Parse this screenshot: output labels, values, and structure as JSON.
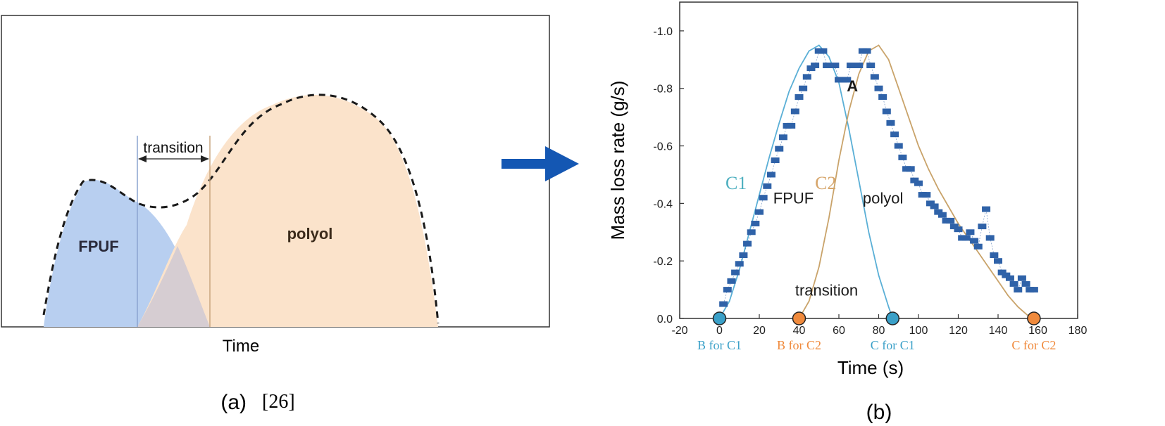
{
  "panel_a": {
    "caption": "(a)",
    "reference": "[26]",
    "xlabel": "Time",
    "labels": {
      "transition": "transition",
      "fpuf": "FPUF",
      "polyol": "polyol"
    },
    "colors": {
      "fpuf_fill": "#b8cff0",
      "polyol_fill": "#fbe3cb",
      "overlap_fill": "#cfc9d3",
      "outline": "#1a1a1a"
    }
  },
  "panel_b": {
    "caption": "(b)",
    "chart_data": {
      "type": "scatter",
      "xlabel": "Time (s)",
      "ylabel": "Mass loss rate (g/s)",
      "xlim": [
        -20,
        180
      ],
      "ylim": [
        0.0,
        -1.1
      ],
      "xticks": [
        -20,
        0,
        20,
        40,
        60,
        80,
        100,
        120,
        140,
        160,
        180
      ],
      "yticks": [
        0.0,
        -0.2,
        -0.4,
        -0.6,
        -0.8,
        -1.0
      ],
      "ytick_labels": [
        "0.0",
        "-0.2",
        "-0.4",
        "-0.6",
        "-0.8",
        "-1.0"
      ],
      "series": [
        {
          "kind": "measured",
          "color": "#2f62a8",
          "x": [
            2,
            4,
            6,
            8,
            10,
            12,
            14,
            16,
            18,
            20,
            22,
            24,
            26,
            28,
            30,
            32,
            34,
            36,
            38,
            40,
            42,
            44,
            46,
            48,
            50,
            52,
            54,
            56,
            58,
            60,
            62,
            64,
            66,
            68,
            70,
            72,
            74,
            76,
            78,
            80,
            82,
            84,
            86,
            88,
            90,
            92,
            94,
            96,
            98,
            100,
            102,
            104,
            106,
            108,
            110,
            112,
            114,
            116,
            118,
            120,
            122,
            124,
            126,
            128,
            130,
            132,
            134,
            136,
            138,
            140,
            142,
            144,
            146,
            148,
            150,
            152,
            154,
            156,
            158
          ],
          "y": [
            -0.05,
            -0.1,
            -0.13,
            -0.16,
            -0.19,
            -0.22,
            -0.26,
            -0.3,
            -0.33,
            -0.37,
            -0.42,
            -0.46,
            -0.5,
            -0.55,
            -0.59,
            -0.63,
            -0.67,
            -0.67,
            -0.72,
            -0.77,
            -0.8,
            -0.84,
            -0.87,
            -0.88,
            -0.93,
            -0.93,
            -0.88,
            -0.88,
            -0.88,
            -0.83,
            -0.83,
            -0.83,
            -0.88,
            -0.88,
            -0.88,
            -0.93,
            -0.93,
            -0.88,
            -0.84,
            -0.8,
            -0.77,
            -0.72,
            -0.68,
            -0.64,
            -0.6,
            -0.56,
            -0.52,
            -0.52,
            -0.48,
            -0.47,
            -0.43,
            -0.43,
            -0.4,
            -0.39,
            -0.37,
            -0.36,
            -0.34,
            -0.34,
            -0.32,
            -0.31,
            -0.28,
            -0.28,
            -0.3,
            -0.27,
            -0.25,
            -0.32,
            -0.38,
            -0.28,
            -0.22,
            -0.2,
            -0.16,
            -0.15,
            -0.14,
            -0.12,
            -0.1,
            -0.14,
            -0.12,
            -0.1,
            -0.1
          ]
        },
        {
          "name": "C1",
          "kind": "fit",
          "color": "#5aafd6",
          "x": [
            0,
            5,
            10,
            15,
            20,
            25,
            30,
            35,
            40,
            45,
            50,
            55,
            60,
            65,
            70,
            75,
            80,
            85,
            87
          ],
          "y": [
            0,
            -0.06,
            -0.17,
            -0.3,
            -0.43,
            -0.56,
            -0.68,
            -0.79,
            -0.87,
            -0.93,
            -0.95,
            -0.91,
            -0.82,
            -0.66,
            -0.48,
            -0.3,
            -0.15,
            -0.04,
            0
          ]
        },
        {
          "name": "C2",
          "kind": "fit",
          "color": "#c9a36a",
          "x": [
            40,
            45,
            50,
            55,
            60,
            65,
            70,
            75,
            80,
            85,
            90,
            95,
            100,
            105,
            110,
            115,
            120,
            125,
            130,
            135,
            140,
            145,
            150,
            155,
            158
          ],
          "y": [
            0,
            -0.06,
            -0.18,
            -0.35,
            -0.55,
            -0.72,
            -0.85,
            -0.93,
            -0.95,
            -0.9,
            -0.8,
            -0.7,
            -0.6,
            -0.52,
            -0.45,
            -0.39,
            -0.33,
            -0.28,
            -0.23,
            -0.18,
            -0.13,
            -0.08,
            -0.04,
            -0.01,
            0
          ]
        }
      ],
      "markers": [
        {
          "label": "B for C1",
          "x": 0,
          "y": 0.0,
          "color": "#3aa0c8"
        },
        {
          "label": "B for C2",
          "x": 40,
          "y": 0.0,
          "color": "#f08a3c"
        },
        {
          "label": "C for C1",
          "x": 87,
          "y": 0.0,
          "color": "#3aa0c8"
        },
        {
          "label": "C for C2",
          "x": 158,
          "y": 0.0,
          "color": "#f08a3c"
        }
      ],
      "annotations": [
        {
          "text": "C1",
          "x": 3,
          "y": -0.45,
          "color": "#4fb0c0"
        },
        {
          "text": "FPUF",
          "x": 27,
          "y": -0.4,
          "color": "#1a1a1a"
        },
        {
          "text": "C2",
          "x": 48,
          "y": -0.45,
          "color": "#d6a56a"
        },
        {
          "text": "polyol",
          "x": 72,
          "y": -0.4,
          "color": "#1a1a1a"
        },
        {
          "text": "transition",
          "x": 38,
          "y": -0.08,
          "color": "#1a1a1a"
        },
        {
          "text": "A",
          "x": 64,
          "y": -0.79,
          "color": "#1a1a1a"
        }
      ]
    }
  },
  "arrow": {
    "color": "#1457b3"
  }
}
